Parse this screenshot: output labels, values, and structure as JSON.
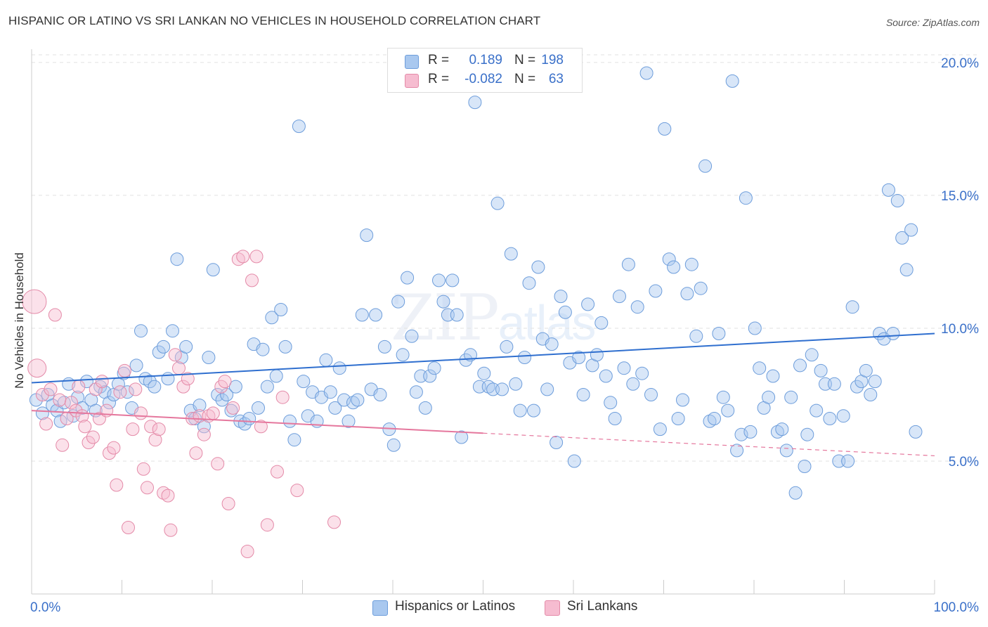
{
  "header": {
    "title": "HISPANIC OR LATINO VS SRI LANKAN NO VEHICLES IN HOUSEHOLD CORRELATION CHART",
    "source": "Source: ZipAtlas.com"
  },
  "watermark": {
    "zip": "ZIP",
    "atlas": "atlas"
  },
  "stats_legend": {
    "rows": [
      {
        "r_label": "R =",
        "r_value": "0.189",
        "n_label": "N =",
        "n_value": "198",
        "color": "#a9c8ef"
      },
      {
        "r_label": "R =",
        "r_value": "-0.082",
        "n_label": "N =",
        "n_value": "63",
        "color": "#f6bcd0"
      }
    ]
  },
  "bottom_legend": {
    "items": [
      {
        "label": "Hispanics or Latinos",
        "color": "#a9c8ef"
      },
      {
        "label": "Sri Lankans",
        "color": "#f6bcd0"
      }
    ]
  },
  "chart_data": {
    "type": "scatter",
    "title": "HISPANIC OR LATINO VS SRI LANKAN NO VEHICLES IN HOUSEHOLD CORRELATION CHART",
    "xlabel": "",
    "ylabel": "No Vehicles in Household",
    "xlim": [
      0,
      100
    ],
    "ylim": [
      0,
      20.5
    ],
    "x_tick_labels": [
      "0.0%",
      "100.0%"
    ],
    "y_ticks": [
      5,
      10,
      15,
      20
    ],
    "y_tick_labels": [
      "5.0%",
      "10.0%",
      "15.0%",
      "20.0%"
    ],
    "grid": true,
    "legend_position": "bottom",
    "series": [
      {
        "name": "Hispanics or Latinos",
        "color": "#a9c8ef",
        "edge": "#6d9ddb",
        "trend": {
          "x": [
            0,
            100
          ],
          "y": [
            7.95,
            9.8
          ],
          "color": "#2f6fcf"
        },
        "points": [
          [
            0.5,
            7.3
          ],
          [
            1.2,
            6.8
          ],
          [
            1.8,
            7.5
          ],
          [
            2.3,
            7.1
          ],
          [
            2.8,
            6.9
          ],
          [
            3.2,
            6.5
          ],
          [
            3.6,
            7.2
          ],
          [
            4.1,
            7.9
          ],
          [
            4.6,
            6.7
          ],
          [
            5.1,
            7.4
          ],
          [
            5.6,
            7.0
          ],
          [
            6.1,
            8.0
          ],
          [
            6.6,
            7.3
          ],
          [
            7.1,
            6.9
          ],
          [
            7.6,
            7.8
          ],
          [
            8.1,
            7.6
          ],
          [
            8.6,
            7.2
          ],
          [
            9.1,
            7.5
          ],
          [
            9.6,
            7.9
          ],
          [
            10.2,
            8.3
          ],
          [
            10.6,
            7.6
          ],
          [
            11.1,
            7.0
          ],
          [
            11.6,
            8.6
          ],
          [
            12.1,
            9.9
          ],
          [
            12.6,
            8.1
          ],
          [
            13.1,
            8.0
          ],
          [
            13.6,
            7.8
          ],
          [
            14.1,
            9.1
          ],
          [
            14.6,
            9.3
          ],
          [
            15.1,
            8.1
          ],
          [
            15.6,
            9.9
          ],
          [
            16.1,
            12.6
          ],
          [
            16.6,
            8.9
          ],
          [
            17.1,
            9.3
          ],
          [
            17.6,
            6.9
          ],
          [
            18.1,
            6.6
          ],
          [
            18.6,
            7.1
          ],
          [
            19.1,
            6.3
          ],
          [
            19.6,
            8.9
          ],
          [
            20.1,
            12.2
          ],
          [
            20.6,
            7.5
          ],
          [
            21.1,
            7.3
          ],
          [
            21.6,
            7.5
          ],
          [
            22.1,
            6.9
          ],
          [
            22.6,
            7.8
          ],
          [
            23.1,
            6.5
          ],
          [
            23.6,
            6.4
          ],
          [
            24.1,
            6.6
          ],
          [
            24.6,
            9.4
          ],
          [
            25.1,
            7.0
          ],
          [
            25.6,
            9.2
          ],
          [
            26.1,
            7.8
          ],
          [
            26.6,
            10.4
          ],
          [
            27.1,
            8.2
          ],
          [
            27.6,
            10.7
          ],
          [
            28.1,
            9.3
          ],
          [
            28.6,
            6.5
          ],
          [
            29.1,
            5.8
          ],
          [
            29.6,
            17.6
          ],
          [
            30.1,
            8.0
          ],
          [
            30.6,
            6.7
          ],
          [
            31.1,
            7.6
          ],
          [
            31.6,
            6.5
          ],
          [
            32.1,
            7.4
          ],
          [
            32.6,
            8.8
          ],
          [
            33.1,
            7.6
          ],
          [
            33.6,
            7.0
          ],
          [
            34.1,
            8.5
          ],
          [
            34.6,
            7.3
          ],
          [
            35.1,
            6.5
          ],
          [
            35.6,
            7.2
          ],
          [
            36.1,
            7.3
          ],
          [
            36.6,
            10.5
          ],
          [
            37.1,
            13.5
          ],
          [
            37.6,
            7.7
          ],
          [
            38.1,
            10.5
          ],
          [
            38.6,
            7.5
          ],
          [
            39.1,
            9.3
          ],
          [
            39.6,
            6.2
          ],
          [
            40.1,
            5.6
          ],
          [
            40.6,
            11.0
          ],
          [
            41.1,
            9.0
          ],
          [
            41.6,
            11.9
          ],
          [
            42.1,
            9.7
          ],
          [
            42.6,
            7.6
          ],
          [
            43.1,
            8.2
          ],
          [
            43.6,
            7.0
          ],
          [
            44.1,
            8.2
          ],
          [
            44.6,
            8.5
          ],
          [
            45.1,
            11.8
          ],
          [
            45.6,
            11.0
          ],
          [
            46.1,
            10.5
          ],
          [
            46.6,
            11.8
          ],
          [
            47.1,
            10.5
          ],
          [
            47.6,
            5.9
          ],
          [
            48.1,
            8.8
          ],
          [
            48.6,
            9.0
          ],
          [
            49.1,
            18.5
          ],
          [
            49.6,
            7.8
          ],
          [
            50.1,
            8.3
          ],
          [
            50.6,
            7.8
          ],
          [
            51.1,
            7.7
          ],
          [
            51.6,
            14.7
          ],
          [
            52.1,
            7.7
          ],
          [
            52.6,
            9.3
          ],
          [
            53.1,
            12.8
          ],
          [
            53.6,
            7.9
          ],
          [
            54.1,
            6.9
          ],
          [
            54.6,
            8.9
          ],
          [
            55.1,
            11.7
          ],
          [
            55.6,
            6.9
          ],
          [
            56.1,
            12.3
          ],
          [
            56.6,
            9.6
          ],
          [
            57.1,
            7.7
          ],
          [
            57.6,
            9.4
          ],
          [
            58.1,
            5.7
          ],
          [
            58.6,
            11.2
          ],
          [
            59.1,
            10.6
          ],
          [
            59.6,
            8.7
          ],
          [
            60.1,
            5.0
          ],
          [
            60.6,
            8.9
          ],
          [
            61.1,
            7.5
          ],
          [
            61.6,
            10.9
          ],
          [
            62.1,
            8.6
          ],
          [
            62.6,
            9.0
          ],
          [
            63.1,
            10.2
          ],
          [
            63.6,
            8.2
          ],
          [
            64.1,
            7.2
          ],
          [
            64.6,
            6.6
          ],
          [
            65.1,
            11.2
          ],
          [
            65.6,
            8.5
          ],
          [
            66.1,
            12.4
          ],
          [
            66.6,
            7.9
          ],
          [
            67.1,
            10.8
          ],
          [
            67.6,
            8.3
          ],
          [
            68.1,
            19.6
          ],
          [
            68.6,
            7.5
          ],
          [
            69.1,
            11.4
          ],
          [
            69.6,
            6.2
          ],
          [
            70.1,
            17.5
          ],
          [
            70.6,
            12.6
          ],
          [
            71.1,
            12.3
          ],
          [
            71.6,
            6.6
          ],
          [
            72.1,
            7.3
          ],
          [
            72.6,
            11.3
          ],
          [
            73.1,
            12.4
          ],
          [
            73.6,
            9.7
          ],
          [
            74.1,
            11.5
          ],
          [
            74.6,
            16.1
          ],
          [
            75.1,
            6.5
          ],
          [
            75.6,
            6.6
          ],
          [
            76.1,
            9.8
          ],
          [
            76.6,
            7.4
          ],
          [
            77.1,
            6.9
          ],
          [
            77.6,
            19.3
          ],
          [
            78.1,
            5.4
          ],
          [
            78.6,
            6.0
          ],
          [
            79.1,
            14.9
          ],
          [
            79.6,
            6.1
          ],
          [
            80.1,
            10.0
          ],
          [
            80.6,
            8.5
          ],
          [
            81.1,
            7.0
          ],
          [
            81.6,
            7.4
          ],
          [
            82.1,
            8.2
          ],
          [
            82.6,
            6.1
          ],
          [
            83.1,
            6.2
          ],
          [
            83.6,
            5.4
          ],
          [
            84.1,
            7.4
          ],
          [
            84.6,
            3.8
          ],
          [
            85.1,
            8.6
          ],
          [
            85.6,
            4.8
          ],
          [
            85.9,
            6.0
          ],
          [
            86.4,
            9.0
          ],
          [
            86.9,
            6.9
          ],
          [
            87.4,
            8.4
          ],
          [
            87.9,
            7.9
          ],
          [
            88.4,
            6.6
          ],
          [
            88.9,
            7.9
          ],
          [
            89.4,
            5.0
          ],
          [
            89.9,
            6.7
          ],
          [
            90.4,
            5.0
          ],
          [
            90.9,
            10.8
          ],
          [
            91.4,
            7.8
          ],
          [
            91.9,
            8.0
          ],
          [
            92.4,
            8.4
          ],
          [
            92.9,
            7.5
          ],
          [
            93.4,
            8.0
          ],
          [
            93.9,
            9.8
          ],
          [
            94.4,
            9.6
          ],
          [
            94.9,
            15.2
          ],
          [
            95.4,
            9.8
          ],
          [
            95.9,
            14.8
          ],
          [
            96.4,
            13.4
          ],
          [
            96.9,
            12.2
          ],
          [
            97.4,
            13.7
          ],
          [
            97.9,
            6.1
          ]
        ]
      },
      {
        "name": "Sri Lankans",
        "color": "#f6bcd0",
        "edge": "#e48aa8",
        "trend": {
          "x": [
            0,
            50
          ],
          "y": [
            6.9,
            6.05
          ],
          "dashed_to": [
            100,
            5.2
          ],
          "color": "#e5779d"
        },
        "points": [
          [
            0.3,
            11.0
          ],
          [
            0.6,
            8.5
          ],
          [
            1.2,
            7.5
          ],
          [
            1.6,
            6.4
          ],
          [
            2.1,
            7.7
          ],
          [
            2.6,
            10.5
          ],
          [
            3.1,
            7.3
          ],
          [
            3.4,
            5.6
          ],
          [
            3.9,
            6.6
          ],
          [
            4.4,
            7.2
          ],
          [
            4.9,
            6.9
          ],
          [
            5.2,
            7.8
          ],
          [
            5.6,
            6.7
          ],
          [
            5.9,
            6.3
          ],
          [
            6.3,
            5.7
          ],
          [
            6.8,
            5.9
          ],
          [
            7.1,
            7.7
          ],
          [
            7.5,
            6.6
          ],
          [
            7.8,
            8.0
          ],
          [
            8.3,
            6.9
          ],
          [
            8.6,
            5.3
          ],
          [
            9.1,
            5.5
          ],
          [
            9.4,
            4.1
          ],
          [
            9.8,
            7.6
          ],
          [
            10.3,
            8.4
          ],
          [
            10.7,
            2.5
          ],
          [
            11.2,
            6.2
          ],
          [
            11.5,
            7.7
          ],
          [
            12.1,
            6.8
          ],
          [
            12.4,
            4.7
          ],
          [
            12.8,
            4.0
          ],
          [
            13.2,
            6.3
          ],
          [
            13.7,
            5.8
          ],
          [
            14.1,
            6.2
          ],
          [
            14.6,
            3.8
          ],
          [
            15.1,
            3.7
          ],
          [
            15.4,
            2.4
          ],
          [
            15.9,
            9.0
          ],
          [
            16.3,
            8.5
          ],
          [
            16.8,
            7.8
          ],
          [
            17.3,
            8.1
          ],
          [
            17.8,
            6.6
          ],
          [
            18.2,
            5.3
          ],
          [
            18.6,
            6.7
          ],
          [
            19.1,
            6.0
          ],
          [
            19.6,
            6.7
          ],
          [
            20.1,
            6.8
          ],
          [
            20.6,
            4.9
          ],
          [
            21.0,
            7.8
          ],
          [
            21.4,
            8.0
          ],
          [
            21.8,
            3.4
          ],
          [
            22.3,
            7.0
          ],
          [
            22.9,
            12.6
          ],
          [
            23.4,
            12.7
          ],
          [
            23.9,
            1.6
          ],
          [
            24.4,
            11.8
          ],
          [
            24.9,
            12.7
          ],
          [
            25.4,
            6.3
          ],
          [
            26.1,
            2.6
          ],
          [
            27.2,
            4.6
          ],
          [
            27.8,
            7.4
          ],
          [
            29.4,
            3.9
          ],
          [
            33.5,
            2.7
          ]
        ]
      }
    ]
  }
}
